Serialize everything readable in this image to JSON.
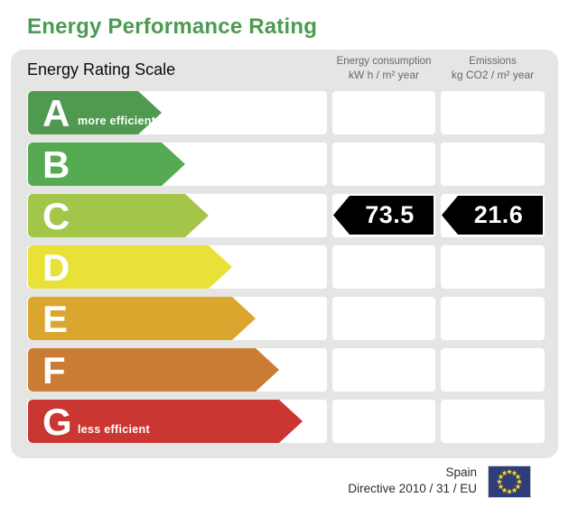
{
  "title": "Energy Performance Rating",
  "accent_color": "#4b9b53",
  "panel": {
    "heading": "Energy Rating Scale",
    "background": "#e5e5e3",
    "columns": [
      {
        "name": "Energy consumption",
        "unit": "kW h / m² year"
      },
      {
        "name": "Emissions",
        "unit": "kg CO2 / m² year"
      }
    ],
    "ratings": [
      {
        "letter": "A",
        "note": "more efficient",
        "color": "#4f9a50",
        "arrow_width": 148
      },
      {
        "letter": "B",
        "note": "",
        "color": "#55aa52",
        "arrow_width": 174
      },
      {
        "letter": "C",
        "note": "",
        "color": "#a3c64a",
        "arrow_width": 200
      },
      {
        "letter": "D",
        "note": "",
        "color": "#e9e138",
        "arrow_width": 226
      },
      {
        "letter": "E",
        "note": "",
        "color": "#dba62d",
        "arrow_width": 252
      },
      {
        "letter": "F",
        "note": "",
        "color": "#ca7c33",
        "arrow_width": 278
      },
      {
        "letter": "G",
        "note": "less efficient",
        "color": "#ca3631",
        "arrow_width": 304
      }
    ],
    "current": {
      "letter": "C",
      "energy_consumption": "73.5",
      "emissions": "21.6",
      "indicator_color": "#000000",
      "value_text_color": "#ffffff"
    }
  },
  "footer": {
    "country": "Spain",
    "directive": "Directive 2010 / 31 / EU",
    "flag": {
      "background": "#2f3e78",
      "star_color": "#ffd617"
    }
  },
  "chart_data": {
    "type": "bar",
    "title": "Energy Performance Rating",
    "categories": [
      "A",
      "B",
      "C",
      "D",
      "E",
      "F",
      "G"
    ],
    "scale_notes": {
      "A": "more efficient",
      "G": "less efficient"
    },
    "current_rating": "C",
    "series": [
      {
        "name": "Energy consumption",
        "unit": "kW h / m² year",
        "rating": "C",
        "value": 73.5
      },
      {
        "name": "Emissions",
        "unit": "kg CO2 / m² year",
        "rating": "C",
        "value": 21.6
      }
    ],
    "country": "Spain",
    "directive": "Directive 2010 / 31 / EU",
    "legend_position": "none",
    "grid": false
  }
}
